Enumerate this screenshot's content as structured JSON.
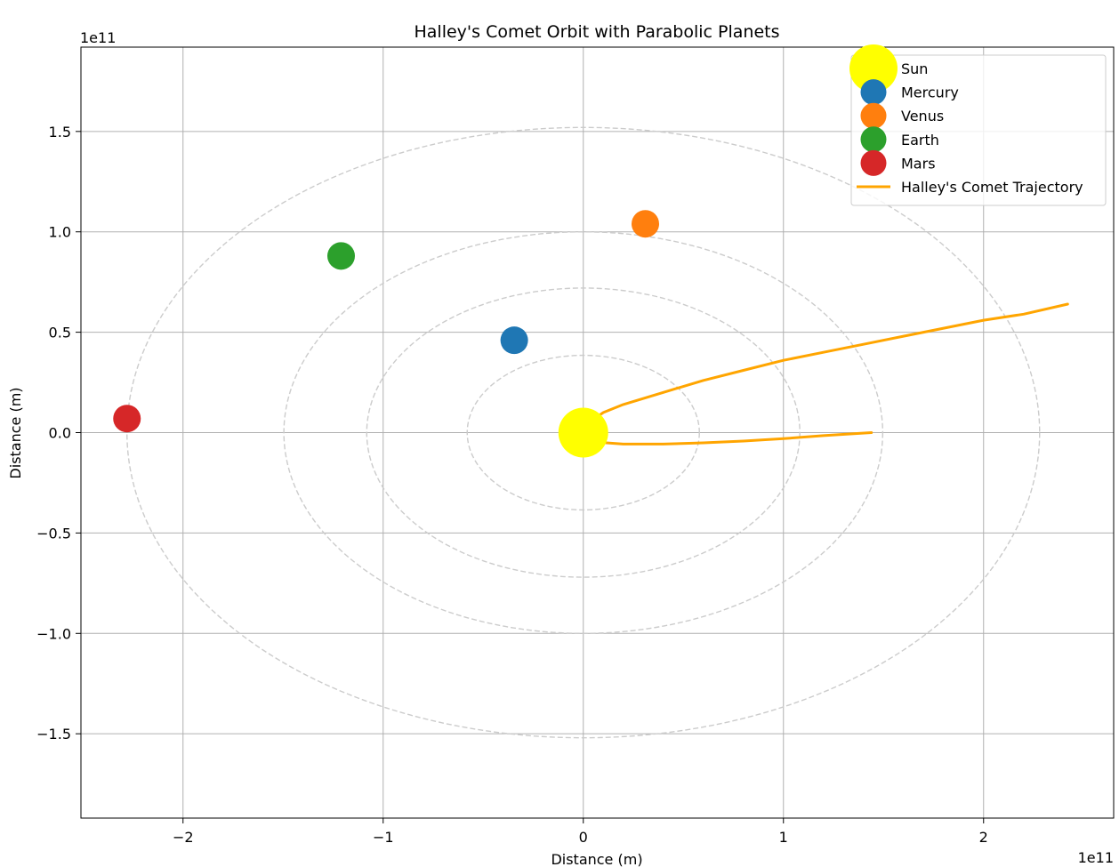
{
  "chart_data": {
    "type": "scatter",
    "title": "Halley's Comet Orbit with Parabolic Planets",
    "xlabel": "Distance (m)",
    "ylabel": "Distance (m)",
    "x_offset_text": "1e11",
    "y_offset_text": "1e11",
    "xlim": [
      -2.51,
      2.65
    ],
    "ylim": [
      -1.92,
      1.92
    ],
    "x_ticks": [
      {
        "value": -2,
        "label": "−2"
      },
      {
        "value": -1,
        "label": "−1"
      },
      {
        "value": 0,
        "label": "0"
      },
      {
        "value": 1,
        "label": "1"
      },
      {
        "value": 2,
        "label": "2"
      }
    ],
    "y_ticks": [
      {
        "value": 1.5,
        "label": "1.5"
      },
      {
        "value": 1.0,
        "label": "1.0"
      },
      {
        "value": 0.5,
        "label": "0.5"
      },
      {
        "value": 0.0,
        "label": "0.0"
      },
      {
        "value": -0.5,
        "label": "−0.5"
      },
      {
        "value": -1.0,
        "label": "−1.0"
      },
      {
        "value": -1.5,
        "label": "−1.5"
      }
    ],
    "grid": true,
    "legend_position": "top-right",
    "orbits": [
      {
        "rx": 0.58,
        "ry": 0.385
      },
      {
        "rx": 1.082,
        "ry": 0.72
      },
      {
        "rx": 1.496,
        "ry": 1.0
      },
      {
        "rx": 2.28,
        "ry": 1.52
      }
    ],
    "orbit_color": "#cccccc",
    "series": [
      {
        "name": "Sun",
        "kind": "point",
        "x": 0.0,
        "y": 0.0,
        "color": "#ffff00",
        "marker_size": "large"
      },
      {
        "name": "Mercury",
        "kind": "point",
        "x": -0.345,
        "y": 0.46,
        "color": "#1f77b4",
        "marker_size": "medium"
      },
      {
        "name": "Venus",
        "kind": "point",
        "x": 0.31,
        "y": 1.04,
        "color": "#ff7f0e",
        "marker_size": "medium"
      },
      {
        "name": "Earth",
        "kind": "point",
        "x": -1.21,
        "y": 0.88,
        "color": "#2ca02c",
        "marker_size": "medium"
      },
      {
        "name": "Mars",
        "kind": "point",
        "x": -2.28,
        "y": 0.07,
        "color": "#d62728",
        "marker_size": "medium"
      },
      {
        "name": "Halley's Comet Trajectory",
        "kind": "line",
        "color": "#ffa500",
        "x": [
          1.44,
          1.2,
          1.0,
          0.8,
          0.6,
          0.4,
          0.2,
          0.1,
          0.02,
          0.0,
          0.02,
          0.1,
          0.2,
          0.4,
          0.6,
          0.8,
          1.0,
          1.2,
          1.4,
          1.6,
          1.8,
          2.0,
          2.2,
          2.42
        ],
        "y": [
          0.0,
          -0.015,
          -0.03,
          -0.042,
          -0.051,
          -0.057,
          -0.057,
          -0.05,
          -0.035,
          0.0,
          0.045,
          0.1,
          0.14,
          0.2,
          0.26,
          0.31,
          0.36,
          0.4,
          0.44,
          0.48,
          0.52,
          0.56,
          0.59,
          0.64
        ]
      }
    ]
  }
}
